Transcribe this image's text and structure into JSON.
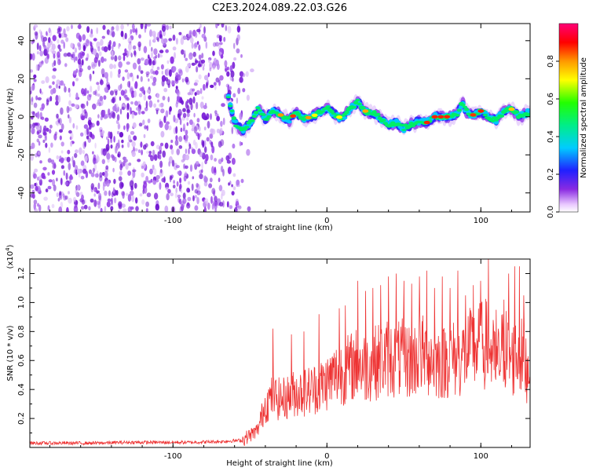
{
  "title": "C2E3.2024.089.22.03.G26",
  "colors": {
    "snr_line": "#ee3333",
    "noise_dots": "#8a2be2",
    "axes": "#000000"
  },
  "chart_data": [
    {
      "type": "heatmap",
      "title": "C2E3.2024.089.22.03.G26",
      "xlabel": "Height of straight line (km)",
      "ylabel": "Frequency (Hz)",
      "xlim": [
        -193,
        132
      ],
      "ylim": [
        -50,
        49
      ],
      "x_ticks": [
        -100,
        0,
        100
      ],
      "y_ticks": [
        40,
        20,
        0,
        -20,
        -40
      ],
      "colorbar": {
        "label": "Normalized spectral amplitude",
        "range": [
          0.0,
          1.0
        ],
        "ticks": [
          "0.0",
          "0.2",
          "0.4",
          "0.6",
          "0.8"
        ],
        "tick_values": [
          0.0,
          0.2,
          0.4,
          0.6,
          0.8
        ],
        "colormap": "rainbow (white-violet-blue-cyan-green-yellow-orange-red-magenta)"
      },
      "noise_region_x": [
        -193,
        -55
      ],
      "ridge_trace": {
        "x": [
          -64,
          -60,
          -55,
          -50,
          -45,
          -40,
          -35,
          -30,
          -25,
          -20,
          -15,
          -10,
          -5,
          0,
          5,
          10,
          15,
          20,
          25,
          30,
          35,
          40,
          45,
          50,
          55,
          60,
          65,
          70,
          75,
          80,
          85,
          88,
          90,
          95,
          100,
          105,
          110,
          115,
          120,
          125,
          130
        ],
        "y": [
          10,
          -3,
          -7,
          -4,
          4,
          -1,
          3,
          1,
          -2,
          2,
          -1,
          0,
          2,
          5,
          1,
          -1,
          4,
          8,
          3,
          2,
          -1,
          -4,
          -3,
          -6,
          -4,
          -2,
          -3,
          0,
          0,
          0,
          2,
          8,
          3,
          1,
          3,
          0,
          -2,
          3,
          4,
          0,
          2
        ],
        "note": ""
      }
    },
    {
      "type": "line",
      "xlabel": "Height of straight line (km)",
      "ylabel": "SNR (10 * v/v)",
      "y_multiplier_label": "(x10^4)",
      "xlim": [
        -193,
        132
      ],
      "ylim": [
        0,
        1.3
      ],
      "x_ticks": [
        -100,
        0,
        100
      ],
      "y_ticks": [
        0.2,
        0.4,
        0.6,
        0.8,
        1.0,
        1.2
      ],
      "series": [
        {
          "name": "",
          "color": "#ee3333",
          "x": [
            -190,
            -170,
            -150,
            -130,
            -110,
            -90,
            -70,
            -55,
            -45,
            -40,
            -35,
            -30,
            -25,
            -20,
            -15,
            -10,
            -5,
            0,
            5,
            10,
            15,
            20,
            25,
            30,
            35,
            40,
            45,
            50,
            55,
            60,
            65,
            70,
            75,
            80,
            85,
            90,
            95,
            100,
            105,
            110,
            115,
            120,
            125,
            130
          ],
          "values": [
            0.03,
            0.03,
            0.03,
            0.035,
            0.035,
            0.035,
            0.04,
            0.05,
            0.12,
            0.3,
            0.35,
            0.33,
            0.35,
            0.38,
            0.38,
            0.4,
            0.42,
            0.45,
            0.5,
            0.52,
            0.55,
            0.58,
            0.55,
            0.58,
            0.6,
            0.62,
            0.6,
            0.62,
            0.58,
            0.65,
            0.62,
            0.6,
            0.58,
            0.62,
            0.6,
            0.65,
            0.68,
            0.7,
            0.72,
            0.55,
            0.7,
            0.6,
            0.65,
            0.55
          ],
          "peaks_x": [
            -35,
            -23,
            -15,
            -5,
            8,
            12,
            20,
            25,
            30,
            35,
            40,
            45,
            50,
            55,
            60,
            65,
            70,
            75,
            80,
            85,
            90,
            95,
            100,
            105,
            110,
            115,
            118,
            122,
            125,
            128
          ],
          "peaks_y": [
            0.82,
            0.78,
            0.8,
            0.92,
            0.96,
            0.98,
            1.15,
            1.08,
            1.1,
            1.12,
            1.18,
            1.2,
            1.15,
            1.13,
            1.18,
            1.22,
            1.1,
            1.18,
            1.1,
            1.22,
            1.05,
            1.12,
            1.15,
            1.3,
            0.95,
            1.02,
            1.2,
            1.25,
            1.25,
            1.05
          ]
        }
      ]
    }
  ]
}
